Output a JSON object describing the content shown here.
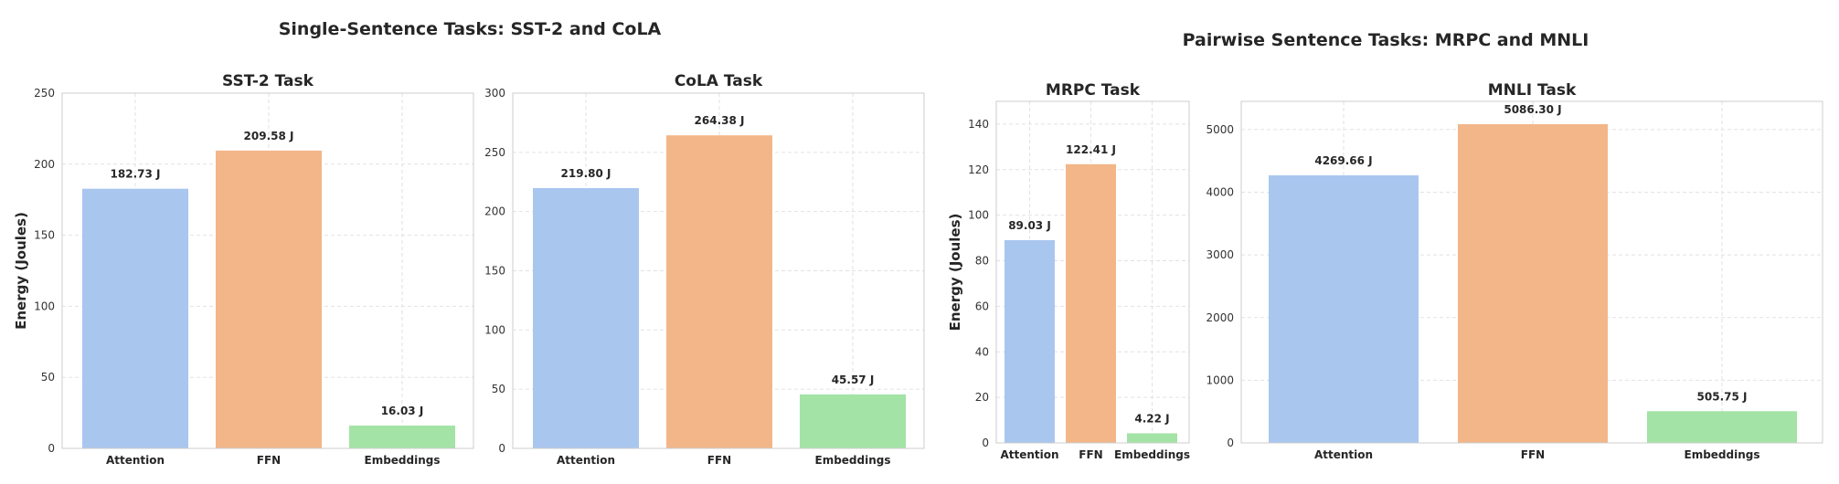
{
  "figure_titles": {
    "left": "Single-Sentence Tasks: SST-2 and CoLA",
    "right": "Pairwise Sentence Tasks: MRPC and MNLI"
  },
  "colors": {
    "Attention": "#a9c6ef",
    "FFN": "#f3b689",
    "Embeddings": "#a3e3a6"
  },
  "chart_data": [
    {
      "type": "bar",
      "title": "SST-2 Task",
      "ylabel": "Energy (Joules)",
      "categories": [
        "Attention",
        "FFN",
        "Embeddings"
      ],
      "values": [
        182.73,
        209.58,
        16.03
      ],
      "data_labels": [
        "182.73 J",
        "209.58 J",
        "16.03 J"
      ],
      "ylim": [
        0,
        250
      ],
      "yticks": [
        0,
        50,
        100,
        150,
        200,
        250
      ],
      "grid": true
    },
    {
      "type": "bar",
      "title": "CoLA Task",
      "ylabel": "",
      "categories": [
        "Attention",
        "FFN",
        "Embeddings"
      ],
      "values": [
        219.8,
        264.38,
        45.57
      ],
      "data_labels": [
        "219.80 J",
        "264.38 J",
        "45.57 J"
      ],
      "ylim": [
        0,
        300
      ],
      "yticks": [
        0,
        50,
        100,
        150,
        200,
        250,
        300
      ],
      "grid": true
    },
    {
      "type": "bar",
      "title": "MRPC Task",
      "ylabel": "Energy (Joules)",
      "categories": [
        "Attention",
        "FFN",
        "Embeddings"
      ],
      "values": [
        89.03,
        122.41,
        4.22
      ],
      "data_labels": [
        "89.03 J",
        "122.41 J",
        "4.22 J"
      ],
      "ylim": [
        0,
        150
      ],
      "yticks": [
        0,
        20,
        40,
        60,
        80,
        100,
        120,
        140
      ],
      "grid": true
    },
    {
      "type": "bar",
      "title": "MNLI Task",
      "ylabel": "",
      "categories": [
        "Attention",
        "FFN",
        "Embeddings"
      ],
      "values": [
        4269.66,
        5086.3,
        505.75
      ],
      "data_labels": [
        "4269.66 J",
        "5086.30 J",
        "505.75 J"
      ],
      "ylim": [
        0,
        5450
      ],
      "yticks": [
        0,
        1000,
        2000,
        3000,
        4000,
        5000
      ],
      "grid": true
    }
  ]
}
